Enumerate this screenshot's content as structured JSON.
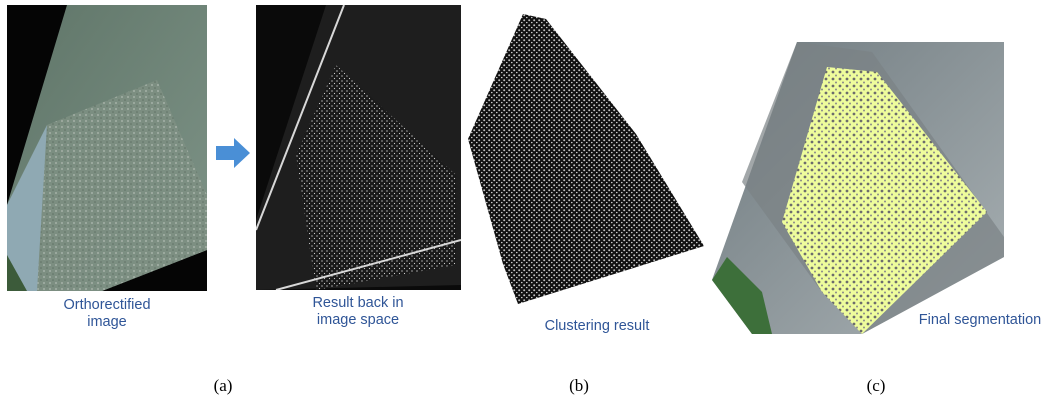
{
  "panels": {
    "ortho_caption": "Orthorectified\nimage",
    "back_caption": "Result back in\nimage space",
    "cluster_caption": "Clustering result",
    "final_caption": "Final segmentation"
  },
  "subfigure_labels": {
    "a": "(a)",
    "b": "(b)",
    "c": "(c)"
  },
  "colors": {
    "arrow": "#4a8fd6",
    "caption_text": "#2f5597",
    "segmentation_overlay": "#eefc9c"
  }
}
